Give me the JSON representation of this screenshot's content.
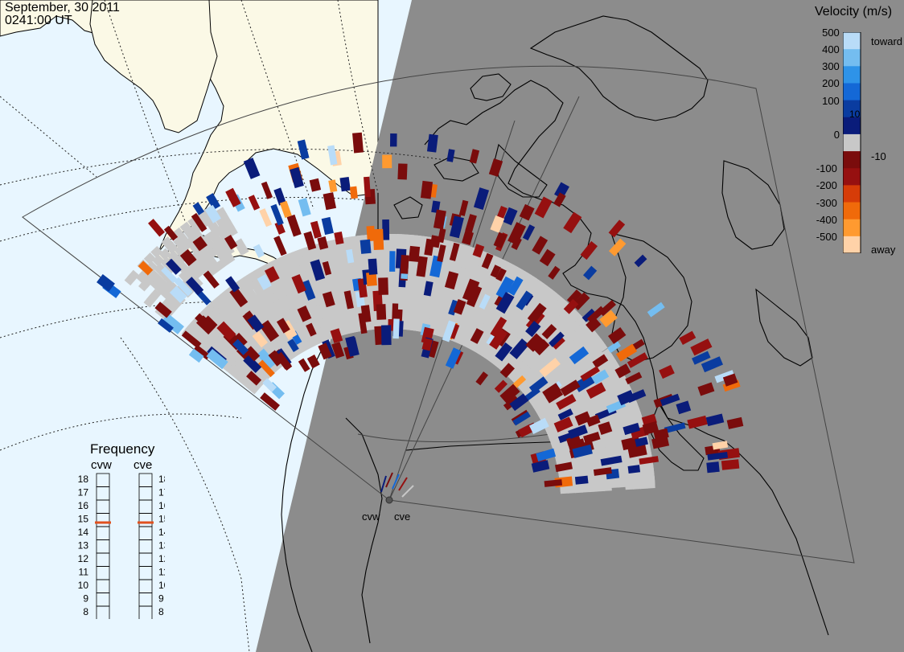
{
  "header": {
    "date": "September, 30 2011",
    "time": "0241:00 UT"
  },
  "colorbar": {
    "title": "Velocity (m/s)",
    "scale": [
      {
        "value": 500,
        "label": "500",
        "color": "#b9dcf8"
      },
      {
        "value": 400,
        "label": "400",
        "color": "#74bdf0"
      },
      {
        "value": 300,
        "label": "300",
        "color": "#2e93e8"
      },
      {
        "value": 200,
        "label": "200",
        "color": "#1468d6"
      },
      {
        "value": 100,
        "label": "100",
        "color": "#0a3ca0"
      },
      {
        "value": 10,
        "label": "10",
        "color": "#0a1c7a"
      },
      {
        "value": 0,
        "label": "0",
        "color": "#c8c8c8"
      },
      {
        "value": -10,
        "label": "-10",
        "color": "#7a0c0c"
      },
      {
        "value": -100,
        "label": "-100",
        "color": "#961010"
      },
      {
        "value": -200,
        "label": "-200",
        "color": "#d63c08"
      },
      {
        "value": -300,
        "label": "-300",
        "color": "#f06a0a"
      },
      {
        "value": -400,
        "label": "-400",
        "color": "#ff9a30"
      },
      {
        "value": -500,
        "label": "-500",
        "color": "#ffd2a8"
      }
    ],
    "toward_label": "toward",
    "away_label": "away"
  },
  "frequency": {
    "title": "Frequency",
    "left_label": "cvw",
    "right_label": "cve",
    "ticks": [
      "18",
      "17",
      "16",
      "15",
      "14",
      "13",
      "12",
      "11",
      "10",
      "9",
      "8"
    ],
    "cvw_mhz": 14.8,
    "cve_mhz": 14.8,
    "marker_color": "#e0501e"
  },
  "radars": {
    "west_label": "cvw",
    "east_label": "cve"
  },
  "colors": {
    "ocean_day": "#e8f6ff",
    "land_day": "#fbf9e6",
    "night": "#8c8c8c",
    "ground_scatter": "#c8c8c8"
  }
}
